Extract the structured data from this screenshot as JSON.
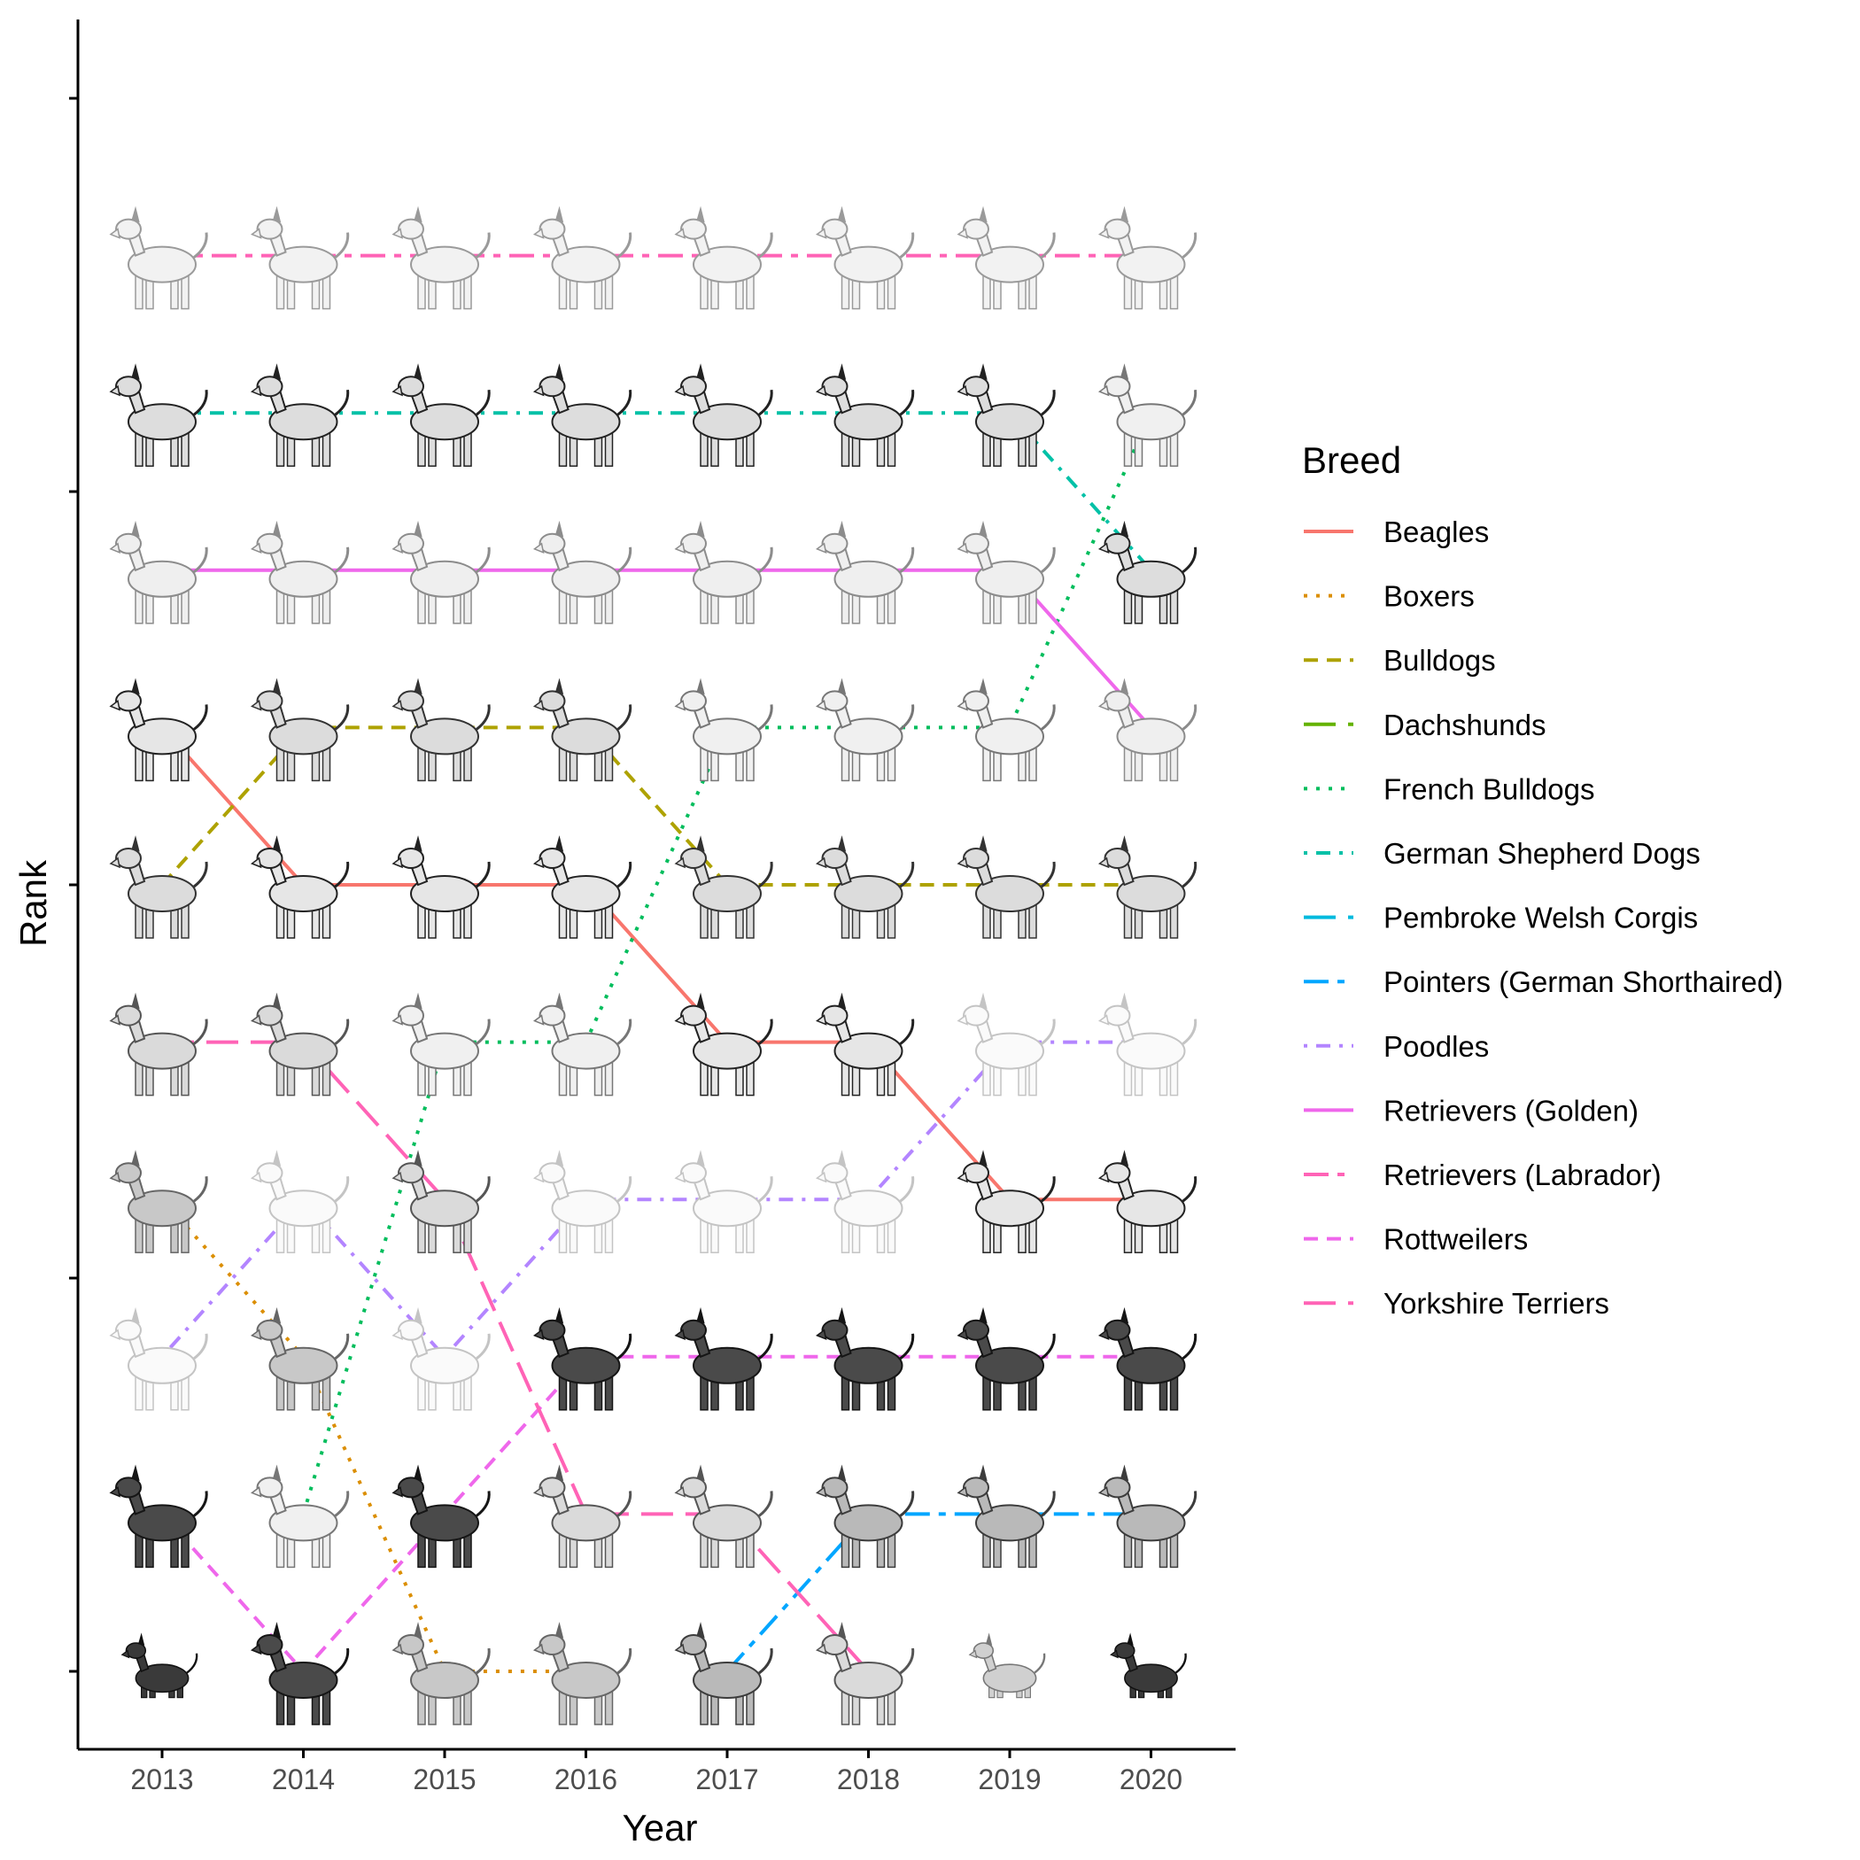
{
  "chart_data": {
    "type": "line",
    "xlabel": "Year",
    "ylabel": "Rank",
    "x": [
      2013,
      2014,
      2015,
      2016,
      2017,
      2018,
      2019,
      2020
    ],
    "y_reversed": true,
    "ylim": [
      11,
      0
    ],
    "legend_title": "Breed",
    "legend_position": "right",
    "grid": false,
    "markers": "dog breed illustrations",
    "series": [
      {
        "name": "Beagles",
        "color": "#F8766D",
        "dash": "solid",
        "icon": "beagle-icon",
        "ranks": [
          4,
          5,
          5,
          5,
          6,
          6,
          7,
          7
        ]
      },
      {
        "name": "Boxers",
        "color": "#DB8E00",
        "dash": "dotted",
        "icon": "boxer-icon",
        "ranks": [
          7,
          8,
          10,
          10,
          null,
          null,
          null,
          null
        ]
      },
      {
        "name": "Bulldogs",
        "color": "#AEA200",
        "dash": "dashed",
        "icon": "bulldog-icon",
        "ranks": [
          5,
          4,
          4,
          4,
          5,
          5,
          5,
          5
        ]
      },
      {
        "name": "Dachshunds",
        "color": "#64B200",
        "dash": "longdash",
        "icon": "dachshund-icon",
        "ranks": [
          10,
          null,
          null,
          null,
          null,
          null,
          null,
          10
        ]
      },
      {
        "name": "French Bulldogs",
        "color": "#00BD5C",
        "dash": "dotted",
        "icon": "french-bulldog-icon",
        "ranks": [
          null,
          9,
          6,
          6,
          4,
          4,
          4,
          2
        ]
      },
      {
        "name": "German Shepherd Dogs",
        "color": "#00C1A7",
        "dash": "dotdash",
        "icon": "german-shepherd-icon",
        "ranks": [
          2,
          2,
          2,
          2,
          2,
          2,
          2,
          3
        ]
      },
      {
        "name": "Pembroke Welsh Corgis",
        "color": "#00BADE",
        "dash": "longdash",
        "icon": "corgi-icon",
        "ranks": [
          null,
          null,
          null,
          null,
          null,
          null,
          10,
          null
        ]
      },
      {
        "name": "Pointers (German Shorthaired)",
        "color": "#00A6FF",
        "dash": "twodash",
        "icon": "pointer-icon",
        "ranks": [
          null,
          null,
          null,
          null,
          10,
          9,
          9,
          9
        ]
      },
      {
        "name": "Poodles",
        "color": "#B385FF",
        "dash": "dotdash",
        "icon": "poodle-icon",
        "ranks": [
          8,
          7,
          8,
          7,
          7,
          7,
          6,
          6
        ]
      },
      {
        "name": "Retrievers (Golden)",
        "color": "#EF67EB",
        "dash": "solid",
        "icon": "golden-retriever-icon",
        "ranks": [
          3,
          3,
          3,
          3,
          3,
          3,
          3,
          4
        ]
      },
      {
        "name": "Retrievers (Labrador)",
        "color": "#FF63B6",
        "dash": "twodash",
        "icon": "labrador-icon",
        "ranks": [
          1,
          1,
          1,
          1,
          1,
          1,
          1,
          1
        ]
      },
      {
        "name": "Rottweilers",
        "color": "#EF67EB",
        "dash": "dashed",
        "icon": "rottweiler-icon",
        "ranks": [
          9,
          10,
          9,
          8,
          8,
          8,
          8,
          8
        ]
      },
      {
        "name": "Yorkshire Terriers",
        "color": "#FF63B6",
        "dash": "longdash",
        "icon": "yorkshire-terrier-icon",
        "ranks": [
          6,
          6,
          7,
          9,
          9,
          10,
          null,
          null
        ]
      }
    ]
  }
}
